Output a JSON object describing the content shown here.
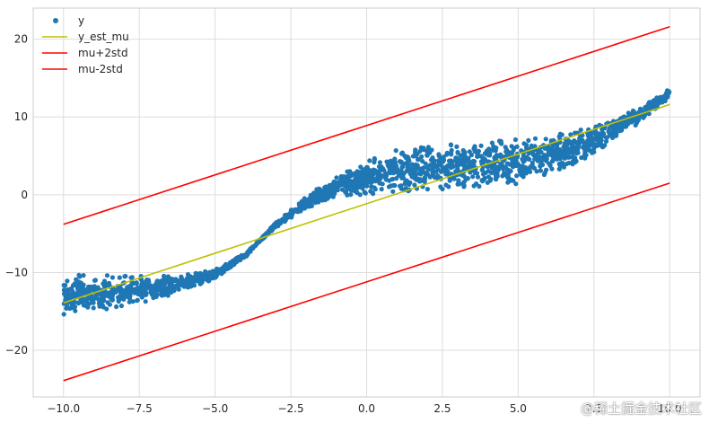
{
  "chart_data": {
    "type": "scatter",
    "title": "",
    "xlabel": "",
    "ylabel": "",
    "xlim": [
      -11,
      11
    ],
    "ylim": [
      -26,
      24
    ],
    "xticks": [
      -10.0,
      -7.5,
      -5.0,
      -2.5,
      0.0,
      2.5,
      5.0,
      7.5,
      10.0
    ],
    "xtick_labels": [
      "−10.0",
      "−7.5",
      "−5.0",
      "−2.5",
      "0.0",
      "2.5",
      "5.0",
      "7.5",
      "10.0"
    ],
    "yticks": [
      -20,
      -10,
      0,
      10,
      20
    ],
    "ytick_labels": [
      "−20",
      "−10",
      "0",
      "10",
      "20"
    ],
    "grid": true,
    "legend_position": "top-left",
    "scatter_profile": [
      {
        "x": -10.0,
        "y": -12.8,
        "spread": 2.6
      },
      {
        "x": -9.0,
        "y": -12.7,
        "spread": 2.4
      },
      {
        "x": -8.0,
        "y": -12.4,
        "spread": 2.0
      },
      {
        "x": -7.0,
        "y": -12.0,
        "spread": 1.5
      },
      {
        "x": -6.0,
        "y": -11.3,
        "spread": 1.0
      },
      {
        "x": -5.0,
        "y": -10.2,
        "spread": 0.6
      },
      {
        "x": -4.0,
        "y": -7.8,
        "spread": 0.25
      },
      {
        "x": -3.5,
        "y": -5.8,
        "spread": 0.15
      },
      {
        "x": -3.0,
        "y": -3.9,
        "spread": 0.3
      },
      {
        "x": -2.0,
        "y": -1.0,
        "spread": 0.8
      },
      {
        "x": -1.0,
        "y": 1.0,
        "spread": 1.4
      },
      {
        "x": 0.0,
        "y": 2.3,
        "spread": 2.2
      },
      {
        "x": 1.0,
        "y": 3.0,
        "spread": 2.8
      },
      {
        "x": 2.0,
        "y": 3.3,
        "spread": 3.0
      },
      {
        "x": 3.0,
        "y": 3.6,
        "spread": 3.0
      },
      {
        "x": 4.0,
        "y": 3.9,
        "spread": 3.0
      },
      {
        "x": 5.0,
        "y": 4.3,
        "spread": 2.9
      },
      {
        "x": 6.0,
        "y": 5.1,
        "spread": 2.6
      },
      {
        "x": 7.0,
        "y": 6.3,
        "spread": 2.2
      },
      {
        "x": 8.0,
        "y": 8.0,
        "spread": 1.7
      },
      {
        "x": 9.0,
        "y": 10.3,
        "spread": 1.0
      },
      {
        "x": 10.0,
        "y": 13.0,
        "spread": 0.6
      }
    ],
    "series": [
      {
        "name": "y",
        "kind": "scatter",
        "color": "#1f77b4",
        "x_range": [
          -10,
          10
        ],
        "point_count": 2200
      },
      {
        "name": "y_est_mu",
        "kind": "line",
        "color": "#bfbf00",
        "x": [
          -10,
          10
        ],
        "y": [
          -13.9,
          11.6
        ]
      },
      {
        "name": "mu+2std",
        "kind": "line",
        "color": "#ff0000",
        "x": [
          -10,
          10
        ],
        "y": [
          -3.8,
          21.6
        ]
      },
      {
        "name": "mu-2std",
        "kind": "line",
        "color": "#ff0000",
        "x": [
          -10,
          10
        ],
        "y": [
          -23.9,
          1.5
        ]
      }
    ],
    "legend": [
      "y",
      "y_est_mu",
      "mu+2std",
      "mu-2std"
    ]
  },
  "watermark": "@稀土掘金技术社区"
}
